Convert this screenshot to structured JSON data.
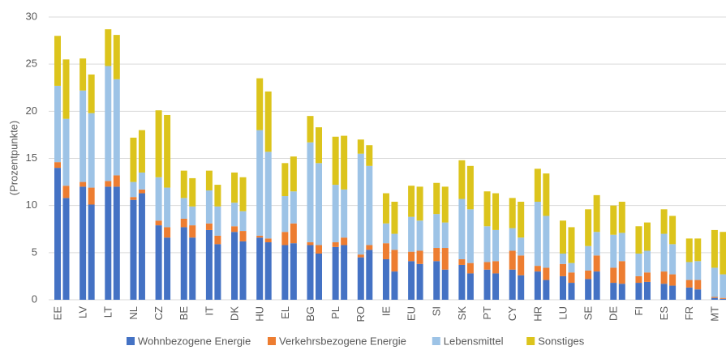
{
  "chart_data": {
    "type": "stacked_bar",
    "y_label": "(Prozentpunkte)",
    "categories": [
      "EE",
      null,
      "LV",
      null,
      "LT",
      null,
      "NL",
      null,
      "CZ",
      null,
      "BE",
      null,
      "IT",
      null,
      "DK",
      null,
      "HU",
      null,
      "EL",
      null,
      "BG",
      null,
      "PL",
      null,
      "RO",
      null,
      "IE",
      null,
      "EU",
      null,
      "SI",
      null,
      "SK",
      null,
      "PT",
      null,
      "CY",
      null,
      "HR",
      null,
      "LU",
      null,
      "SE",
      null,
      "DE",
      null,
      "FI",
      null,
      "ES",
      null,
      "FR",
      null,
      "MT",
      null
    ],
    "series": [
      {
        "name": "Wohnbezogene Energie",
        "color": "#4472c4",
        "values": [
          14,
          10.8,
          12,
          10.1,
          12,
          12,
          10.6,
          11.3,
          7.9,
          6.6,
          7.7,
          6.6,
          7.4,
          5.9,
          7.2,
          6.2,
          6.6,
          6.1,
          5.8,
          6,
          5.8,
          4.9,
          5.6,
          5.8,
          4.5,
          5.3,
          4.3,
          3,
          4.1,
          3.8,
          4.1,
          3.2,
          3.7,
          2.8,
          3.2,
          2.8,
          3.2,
          2.6,
          3,
          2.1,
          2.5,
          1.8,
          2.2,
          3,
          1.8,
          1.7,
          1.8,
          1.9,
          1.7,
          1.5,
          1.3,
          1.1,
          0.2,
          0.1
        ]
      },
      {
        "name": "Verkehrsbezogene Energie",
        "color": "#ed7d31",
        "values": [
          0.6,
          1.3,
          0.5,
          1.8,
          0.6,
          1.2,
          0.3,
          0.4,
          0.5,
          1.1,
          0.9,
          1.3,
          0.7,
          0.9,
          0.6,
          1.1,
          0.2,
          0.4,
          1.4,
          2.1,
          0.3,
          0.9,
          0.5,
          0.8,
          0.3,
          0.5,
          1.7,
          2.3,
          1,
          1.4,
          1.4,
          2.3,
          0.6,
          1.1,
          0.8,
          1.3,
          2,
          2.1,
          0.6,
          1.3,
          1.3,
          1.1,
          0.9,
          1.7,
          1.6,
          2.4,
          0.7,
          1,
          1.3,
          1.2,
          0.8,
          1,
          0.1,
          0.1
        ]
      },
      {
        "name": "Lebensmittel",
        "color": "#9dc3e6",
        "values": [
          8.1,
          7.1,
          9.7,
          7.9,
          12.2,
          10.2,
          1.6,
          1.8,
          4.6,
          4.2,
          2.2,
          2,
          3.5,
          3.1,
          2.5,
          2.1,
          11.2,
          9.2,
          3.8,
          3.4,
          10.6,
          8.7,
          6.1,
          5.1,
          10.7,
          8.4,
          2.1,
          1.7,
          3.7,
          3.2,
          3.6,
          2.7,
          6.4,
          5.7,
          3.8,
          3.3,
          2.4,
          1.9,
          6.8,
          5.5,
          1.1,
          1,
          2.6,
          2.5,
          3.5,
          3,
          2.4,
          2.3,
          4,
          3.2,
          1.9,
          2,
          3.1,
          2.5
        ]
      },
      {
        "name": "Sonstiges",
        "color": "#dcc41c",
        "values": [
          5.3,
          6.3,
          3.4,
          4.1,
          3.9,
          4.7,
          4.7,
          4.5,
          7.1,
          7.7,
          2.9,
          3,
          2.1,
          2.3,
          3.2,
          3.6,
          5.5,
          6.4,
          3.5,
          3.7,
          2.8,
          3.8,
          5.1,
          5.7,
          1.5,
          2.2,
          3.2,
          3.4,
          3.3,
          3.6,
          3.3,
          3.8,
          4.1,
          4.6,
          3.7,
          3.9,
          3.2,
          3.8,
          3.5,
          4.5,
          3.5,
          3.8,
          3.9,
          3.9,
          3.1,
          3.3,
          2.9,
          3,
          2.6,
          3,
          2.5,
          2.4,
          4,
          4.5
        ]
      }
    ],
    "ylim": [
      0,
      30
    ],
    "yticks": [
      0,
      5,
      10,
      15,
      20,
      25,
      30
    ],
    "grid": true,
    "legend": "bottom"
  }
}
